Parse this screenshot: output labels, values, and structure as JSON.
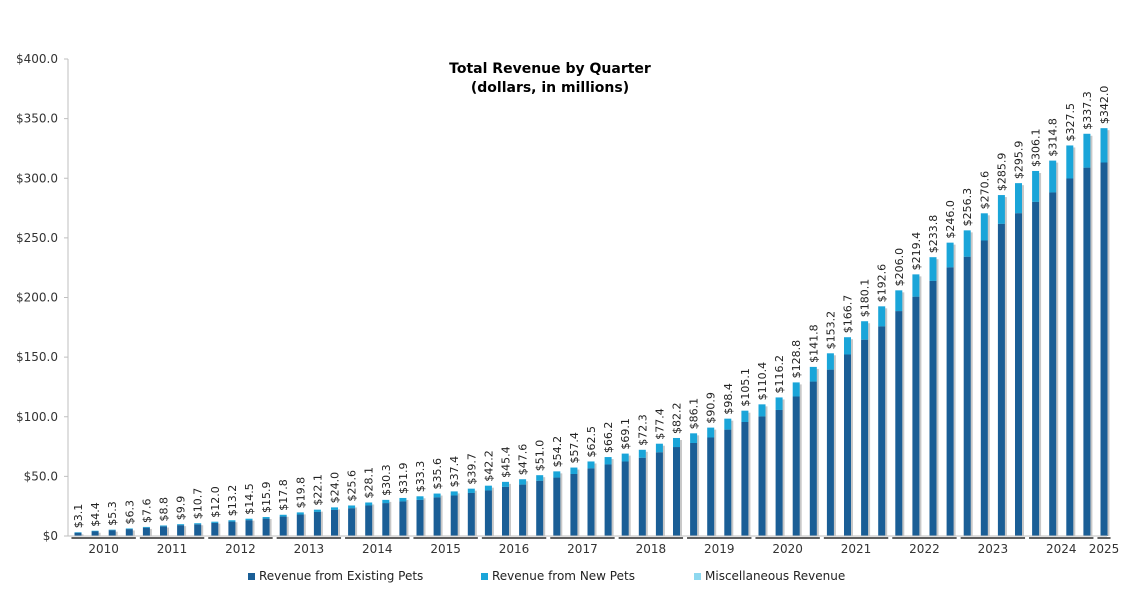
{
  "chart_data": {
    "type": "bar",
    "stacked": true,
    "title": "Total Revenue by Quarter",
    "subtitle": "(dollars, in millions)",
    "xlabel": "",
    "ylabel": "",
    "ylim": [
      0,
      400
    ],
    "yticks": [
      0,
      50,
      100,
      150,
      200,
      250,
      300,
      350,
      400
    ],
    "ytick_labels": [
      "$0",
      "$50.0",
      "$100.0",
      "$150.0",
      "$200.0",
      "$250.0",
      "$300.0",
      "$350.0",
      "$400.0"
    ],
    "grid": false,
    "legend_position": "bottom",
    "years": [
      "2010",
      "2011",
      "2012",
      "2013",
      "2014",
      "2015",
      "2016",
      "2017",
      "2018",
      "2019",
      "2020",
      "2021",
      "2022",
      "2023",
      "2024",
      "2025"
    ],
    "categories": [
      "2010 Q1",
      "2010 Q2",
      "2010 Q3",
      "2010 Q4",
      "2011 Q1",
      "2011 Q2",
      "2011 Q3",
      "2011 Q4",
      "2012 Q1",
      "2012 Q2",
      "2012 Q3",
      "2012 Q4",
      "2013 Q1",
      "2013 Q2",
      "2013 Q3",
      "2013 Q4",
      "2014 Q1",
      "2014 Q2",
      "2014 Q3",
      "2014 Q4",
      "2015 Q1",
      "2015 Q2",
      "2015 Q3",
      "2015 Q4",
      "2016 Q1",
      "2016 Q2",
      "2016 Q3",
      "2016 Q4",
      "2017 Q1",
      "2017 Q2",
      "2017 Q3",
      "2017 Q4",
      "2018 Q1",
      "2018 Q2",
      "2018 Q3",
      "2018 Q4",
      "2019 Q1",
      "2019 Q2",
      "2019 Q3",
      "2019 Q4",
      "2020 Q1",
      "2020 Q2",
      "2020 Q3",
      "2020 Q4",
      "2021 Q1",
      "2021 Q2",
      "2021 Q3",
      "2021 Q4",
      "2022 Q1",
      "2022 Q2",
      "2022 Q3",
      "2022 Q4",
      "2023 Q1",
      "2023 Q2",
      "2023 Q3",
      "2023 Q4",
      "2024 Q1",
      "2024 Q2",
      "2024 Q3",
      "2024 Q4",
      "2025 Q1"
    ],
    "total_labels": [
      "$3.1",
      "$4.4",
      "$5.3",
      "$6.3",
      "$7.6",
      "$8.8",
      "$9.9",
      "$10.7",
      "$12.0",
      "$13.2",
      "$14.5",
      "$15.9",
      "$17.8",
      "$19.8",
      "$22.1",
      "$24.0",
      "$25.6",
      "$28.1",
      "$30.3",
      "$31.9",
      "$33.3",
      "$35.6",
      "$37.4",
      "$39.7",
      "$42.2",
      "$45.4",
      "$47.6",
      "$51.0",
      "$54.2",
      "$57.4",
      "$62.5",
      "$66.2",
      "$69.1",
      "$72.3",
      "$77.4",
      "$82.2",
      "$86.1",
      "$90.9",
      "$98.4",
      "$105.1",
      "$110.4",
      "$116.2",
      "$128.8",
      "$141.8",
      "$153.2",
      "$166.7",
      "$180.1",
      "$192.6",
      "$206.0",
      "$219.4",
      "$233.8",
      "$246.0",
      "$256.3",
      "$270.6",
      "$285.9",
      "$295.9",
      "$306.1",
      "$314.8",
      "$327.5",
      "$337.3",
      "$342.0"
    ],
    "series": [
      {
        "name": "Revenue from Existing Pets",
        "color": "#1a5e96",
        "values": [
          2.9,
          4.1,
          4.9,
          5.8,
          7.0,
          8.1,
          9.1,
          9.8,
          11.0,
          12.1,
          13.3,
          14.6,
          16.3,
          18.0,
          20.2,
          21.9,
          23.3,
          25.6,
          27.6,
          29.0,
          30.3,
          32.4,
          34.0,
          36.1,
          38.2,
          41.2,
          43.1,
          46.3,
          49.0,
          52.0,
          56.7,
          60.0,
          62.5,
          65.6,
          70.2,
          74.6,
          78.0,
          82.6,
          89.2,
          95.6,
          100.3,
          105.7,
          117.0,
          129.5,
          139.5,
          152.2,
          164.6,
          175.8,
          188.6,
          200.7,
          213.9,
          225.3,
          234.2,
          247.8,
          261.8,
          270.7,
          280.2,
          288.1,
          299.8,
          308.9,
          313.2
        ]
      },
      {
        "name": "Revenue from New Pets",
        "color": "#1aa5d9",
        "values": [
          0.2,
          0.3,
          0.4,
          0.5,
          0.6,
          0.7,
          0.8,
          0.9,
          1.0,
          1.1,
          1.2,
          1.3,
          1.5,
          1.8,
          1.9,
          2.1,
          2.3,
          2.5,
          2.7,
          2.9,
          3.0,
          3.2,
          3.4,
          3.6,
          4.0,
          4.2,
          4.5,
          4.7,
          5.2,
          5.4,
          5.8,
          6.2,
          6.6,
          6.7,
          7.2,
          7.6,
          8.1,
          8.3,
          9.2,
          9.5,
          10.1,
          10.5,
          11.8,
          12.3,
          13.7,
          14.5,
          15.5,
          16.8,
          17.4,
          18.7,
          19.9,
          20.7,
          22.1,
          22.8,
          24.1,
          25.2,
          25.9,
          26.7,
          27.7,
          28.4,
          28.8
        ]
      },
      {
        "name": "Miscellaneous Revenue",
        "color": "#8ed8ef",
        "values": [
          0,
          0,
          0,
          0,
          0,
          0,
          0,
          0,
          0,
          0,
          0,
          0,
          0,
          0,
          0,
          0,
          0,
          0,
          0,
          0,
          0,
          0,
          0,
          0,
          0,
          0,
          0,
          0,
          0,
          0,
          0,
          0,
          0,
          0,
          0,
          0,
          0,
          0,
          0,
          0,
          0,
          0,
          0,
          0,
          0,
          0,
          0,
          0,
          0,
          0,
          0,
          0,
          0,
          0,
          0,
          0,
          0,
          0,
          0,
          0,
          0
        ]
      }
    ]
  }
}
